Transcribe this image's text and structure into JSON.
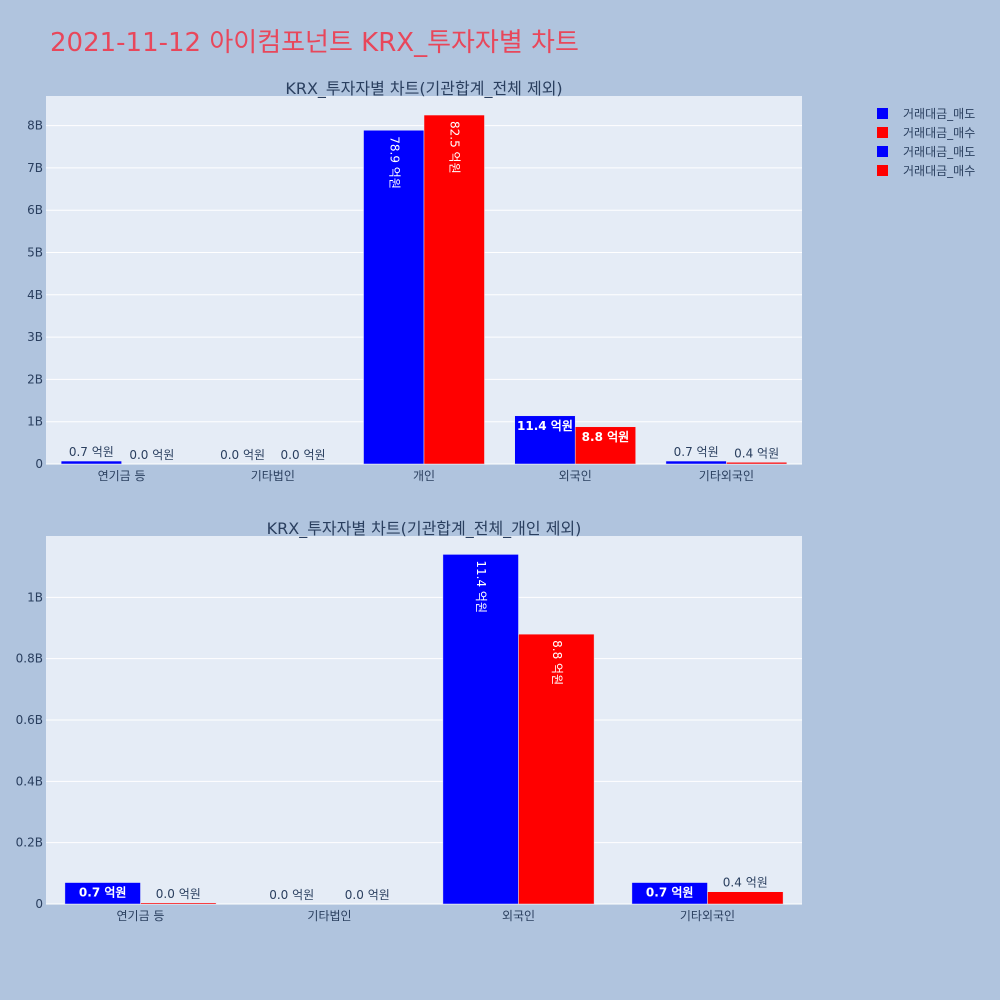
{
  "title": "2021-11-12 아이컴포넌트 KRX_투자자별 차트",
  "legend": {
    "placement": "top-right",
    "items": [
      {
        "label": "거래대금_매도",
        "color": "#0000ff"
      },
      {
        "label": "거래대금_매수",
        "color": "#ff0000"
      },
      {
        "label": "거래대금_매도",
        "color": "#0000ff"
      },
      {
        "label": "거래대금_매수",
        "color": "#ff0000"
      }
    ]
  },
  "colors": {
    "sell": "#0000ff",
    "buy": "#ff0000",
    "plot_bg": "#e5ecf6",
    "paper_bg": "#b0c4de",
    "title": "#e8475b"
  },
  "chart_data": [
    {
      "type": "bar",
      "title": "KRX_투자자별 차트(기관합계_전체 제외)",
      "categories": [
        "연기금 등",
        "기타법인",
        "개인",
        "외국인",
        "기타외국인"
      ],
      "series": [
        {
          "name": "거래대금_매도",
          "color": "#0000ff",
          "values": [
            70000000,
            0,
            7890000000,
            1140000000,
            70000000
          ],
          "labels": [
            "0.7 억원",
            "0.0 억원",
            "78.9 억원",
            "11.4 억원",
            "0.7 억원"
          ],
          "label_inside": [
            false,
            false,
            true,
            true,
            false
          ]
        },
        {
          "name": "거래대금_매수",
          "color": "#ff0000",
          "values": [
            0,
            0,
            8250000000,
            880000000,
            40000000
          ],
          "labels": [
            "0.0 억원",
            "0.0 억원",
            "82.5 억원",
            "8.8 억원",
            "0.4 억원"
          ],
          "label_inside": [
            false,
            false,
            true,
            true,
            false
          ]
        }
      ],
      "ylim": [
        0,
        8700000000
      ],
      "yticks": [
        {
          "value": 0,
          "label": "0"
        },
        {
          "value": 1000000000,
          "label": "1B"
        },
        {
          "value": 2000000000,
          "label": "2B"
        },
        {
          "value": 3000000000,
          "label": "3B"
        },
        {
          "value": 4000000000,
          "label": "4B"
        },
        {
          "value": 5000000000,
          "label": "5B"
        },
        {
          "value": 6000000000,
          "label": "6B"
        },
        {
          "value": 7000000000,
          "label": "7B"
        },
        {
          "value": 8000000000,
          "label": "8B"
        }
      ],
      "grid": true
    },
    {
      "type": "bar",
      "title": "KRX_투자자별 차트(기관합계_전체_개인 제외)",
      "categories": [
        "연기금 등",
        "기타법인",
        "외국인",
        "기타외국인"
      ],
      "series": [
        {
          "name": "거래대금_매도",
          "color": "#0000ff",
          "values": [
            70000000,
            0,
            1140000000,
            70000000
          ],
          "labels": [
            "0.7 억원",
            "0.0 억원",
            "11.4 억원",
            "0.7 억원"
          ],
          "label_inside": [
            true,
            false,
            true,
            true
          ]
        },
        {
          "name": "거래대금_매수",
          "color": "#ff0000",
          "values": [
            4000000,
            0,
            880000000,
            40000000
          ],
          "labels": [
            "0.0 억원",
            "0.0 억원",
            "8.8 억원",
            "0.4 억원"
          ],
          "label_inside": [
            false,
            false,
            true,
            false
          ]
        }
      ],
      "ylim": [
        0,
        1200000000
      ],
      "yticks": [
        {
          "value": 0,
          "label": "0"
        },
        {
          "value": 200000000,
          "label": "0.2B"
        },
        {
          "value": 400000000,
          "label": "0.4B"
        },
        {
          "value": 600000000,
          "label": "0.6B"
        },
        {
          "value": 800000000,
          "label": "0.8B"
        },
        {
          "value": 1000000000,
          "label": "1B"
        }
      ],
      "grid": true
    }
  ]
}
